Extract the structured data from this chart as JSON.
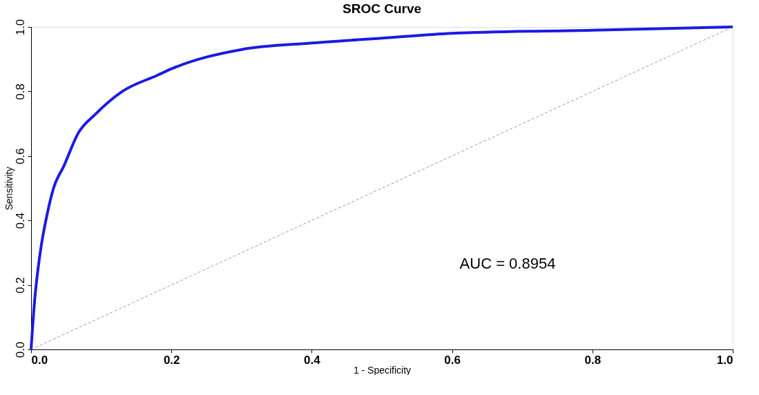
{
  "chart_data": {
    "type": "line",
    "title": "SROC Curve",
    "xlabel": "1 - Specificity",
    "ylabel": "Sensitivity",
    "xlim": [
      0,
      1
    ],
    "ylim": [
      0,
      1
    ],
    "xticks": [
      {
        "value": 0,
        "label": "0.0"
      },
      0.2,
      0.4,
      0.6,
      0.8,
      {
        "value": 1,
        "label": "1.0"
      }
    ],
    "yticks": [
      {
        "value": 0,
        "label": "0.0"
      },
      0.2,
      0.4,
      0.6,
      0.8,
      {
        "value": 1,
        "label": "1.0"
      }
    ],
    "grid": false,
    "marker": "none",
    "series": [
      {
        "color": "#1a1ae6",
        "line_style": "solid",
        "x": [
          0,
          0.005,
          0.013,
          0.023,
          0.032,
          0.047,
          0.067,
          0.092,
          0.13,
          0.18,
          0.2,
          0.3,
          0.4,
          0.5,
          0.6,
          0.8,
          1.0
        ],
        "values": [
          0,
          0.15,
          0.3,
          0.42,
          0.5,
          0.57,
          0.67,
          0.73,
          0.8,
          0.85,
          0.87,
          0.93,
          0.95,
          0.965,
          0.98,
          0.99,
          1.0
        ]
      },
      {
        "color": "#808080",
        "line_style": "dashed",
        "x": [
          0,
          1
        ],
        "values": [
          0,
          1
        ]
      }
    ],
    "annotations": [
      "AUC = 0.8954"
    ]
  }
}
